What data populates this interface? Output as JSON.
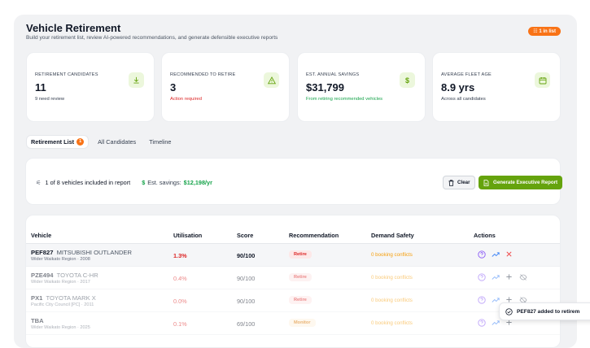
{
  "header": {
    "title": "Vehicle Retirement",
    "subtitle": "Build your retirement list, review AI-powered recommendations, and generate defensible executive reports",
    "list_badge": "1 in list"
  },
  "stats": [
    {
      "label": "RETIREMENT CANDIDATES",
      "value": "11",
      "sub": "9 need review",
      "icon": "download-icon"
    },
    {
      "label": "RECOMMENDED TO RETIRE",
      "value": "3",
      "sub": "Action required",
      "icon": "warning-icon"
    },
    {
      "label": "EST. ANNUAL SAVINGS",
      "value": "$31,799",
      "sub": "From retiring recommended vehicles",
      "icon": "dollar-icon"
    },
    {
      "label": "AVERAGE FLEET AGE",
      "value": "8.9 yrs",
      "sub": "Across all candidates",
      "icon": "calendar-icon"
    }
  ],
  "tabs": [
    {
      "label": "Retirement List",
      "badge": "1"
    },
    {
      "label": "All Candidates"
    },
    {
      "label": "Timeline"
    }
  ],
  "summary": {
    "included": "1 of 8 vehicles included in report",
    "savings_label": "Est. savings:",
    "savings_value": "$12,198/yr",
    "clear_label": "Clear",
    "generate_label": "Generate Executive Report"
  },
  "table": {
    "columns": [
      "Vehicle",
      "Utilisation",
      "Score",
      "Recommendation",
      "Demand Safety",
      "Actions"
    ],
    "rows": [
      {
        "plate": "PEF827",
        "model": "MITSUBISHI OUTLANDER",
        "sub": "Wider Waikato Region · 2008",
        "util": "1.3%",
        "score": "90/100",
        "rec": "Retire",
        "safety": "0 booking conflicts"
      },
      {
        "plate": "PZE494",
        "model": "TOYOTA C-HR",
        "sub": "Wider Waikato Region · 2017",
        "util": "0.4%",
        "score": "90/100",
        "rec": "Retire",
        "safety": "0 booking conflicts"
      },
      {
        "plate": "PX1",
        "model": "TOYOTA MARK X",
        "sub": "Pacific City Council [PC] · 2011",
        "util": "0.0%",
        "score": "90/100",
        "rec": "Retire",
        "safety": "0 booking conflicts"
      },
      {
        "plate": "TBA",
        "model": "",
        "sub": "Wider Waikato Region · 2025",
        "util": "0.1%",
        "score": "69/100",
        "rec": "Monitor",
        "safety": "0 booking conflicts"
      }
    ]
  },
  "toast": {
    "text": "PEF827 added to retirem"
  },
  "colors": {
    "accent": "#65a30d",
    "danger": "#dc2626",
    "warning": "#f59e0b",
    "badge": "#f97316",
    "success": "#16a34a"
  }
}
